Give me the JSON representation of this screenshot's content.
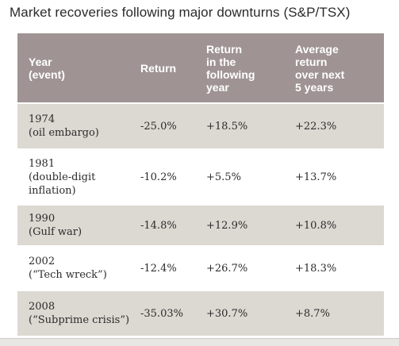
{
  "title": "Market recoveries following major downturns (S&P/TSX)",
  "table": {
    "headers": [
      "Year\n(event)",
      "Return",
      "Return\nin the\nfollowing\nyear",
      "Average\nreturn\nover next\n5 years"
    ],
    "rows": [
      [
        "1974\n(oil embargo)",
        "-25.0%",
        "+18.5%",
        "+22.3%"
      ],
      [
        "1981\n(double-digit\ninflation)",
        "-10.2%",
        "+5.5%",
        "+13.7%"
      ],
      [
        "1990\n(Gulf war)",
        "-14.8%",
        "+12.9%",
        "+10.8%"
      ],
      [
        "2002\n(“Tech wreck”)",
        "-12.4%",
        "+26.7%",
        "+18.3%"
      ],
      [
        "2008\n(“Subprime crisis”)",
        "-35.03%",
        "+30.7%",
        "+8.7%"
      ]
    ]
  },
  "colors": {
    "header_bg": "#9f9493",
    "shaded_row_bg": "#dcd8d2"
  }
}
